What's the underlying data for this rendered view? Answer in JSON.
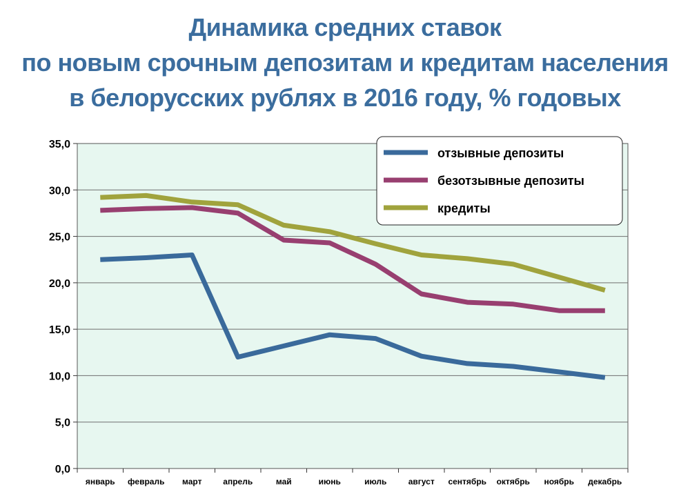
{
  "chart_data": {
    "type": "line",
    "title": [
      "Динамика средних ставок",
      "по новым срочным депозитам и кредитам населения",
      "в белорусских рублях в 2016 году, % годовых"
    ],
    "categories": [
      "январь",
      "февраль",
      "март",
      "апрель",
      "май",
      "июнь",
      "июль",
      "август",
      "сентябрь",
      "октябрь",
      "ноябрь",
      "декабрь"
    ],
    "series": [
      {
        "name": "отзывные депозиты",
        "color": "#3a6a9b",
        "values": [
          22.5,
          22.7,
          23.0,
          12.0,
          13.2,
          14.4,
          14.0,
          12.1,
          11.3,
          11.0,
          10.4,
          9.8
        ]
      },
      {
        "name": "безотзывные депозиты",
        "color": "#983f70",
        "values": [
          27.8,
          28.0,
          28.1,
          27.5,
          24.6,
          24.3,
          22.0,
          18.8,
          17.9,
          17.7,
          17.0,
          17.0
        ]
      },
      {
        "name": "кредиты",
        "color": "#a0a33d",
        "values": [
          29.2,
          29.4,
          28.7,
          28.4,
          26.2,
          25.5,
          24.2,
          23.0,
          22.6,
          22.0,
          20.6,
          19.2
        ]
      }
    ],
    "ylim": [
      0,
      35
    ],
    "yticks": [
      "0,0",
      "5,0",
      "10,0",
      "15,0",
      "20,0",
      "25,0",
      "30,0",
      "35,0"
    ],
    "ytick_values": [
      0,
      5,
      10,
      15,
      20,
      25,
      30,
      35
    ],
    "grid": true,
    "legend_position": "top-right",
    "plot_background": "#e7f7f0"
  }
}
